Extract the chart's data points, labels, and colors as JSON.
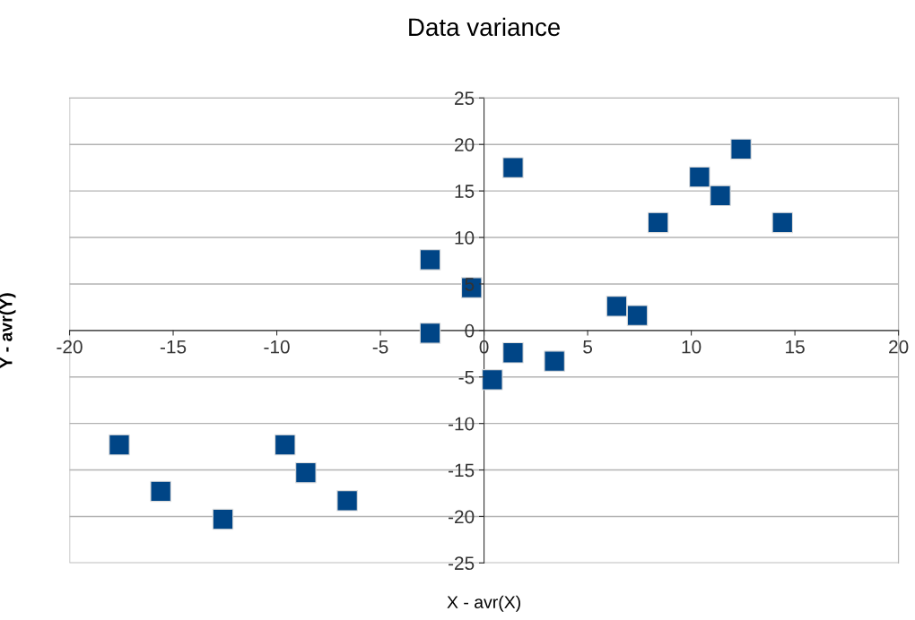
{
  "chart_data": {
    "type": "scatter",
    "title": "Data variance",
    "xlabel": "X - avr(X)",
    "ylabel": "Y - avr(Y)",
    "x": [
      -17.6,
      -15.6,
      -12.6,
      -9.6,
      -8.6,
      -6.6,
      -2.6,
      -2.6,
      -0.6,
      0.4,
      1.4,
      1.4,
      3.4,
      6.4,
      7.4,
      8.4,
      10.4,
      11.4,
      12.4,
      14.4
    ],
    "series": [
      {
        "color": "#004586",
        "values": [
          -12.3,
          -17.3,
          -20.3,
          -12.3,
          -15.3,
          -18.3,
          7.6,
          -0.3,
          4.6,
          -5.3,
          17.5,
          -2.4,
          -3.3,
          2.6,
          1.6,
          11.6,
          16.5,
          14.5,
          19.5,
          11.6
        ]
      }
    ],
    "marker": "square",
    "grid": "y",
    "xlim": [
      -20,
      20
    ],
    "xticks": [
      -20,
      -15,
      -10,
      -5,
      0,
      5,
      10,
      15,
      20
    ],
    "ylim": [
      -25,
      25
    ],
    "yticks": [
      -25,
      -20,
      -15,
      -10,
      -5,
      0,
      5,
      10,
      15,
      20,
      25
    ]
  }
}
